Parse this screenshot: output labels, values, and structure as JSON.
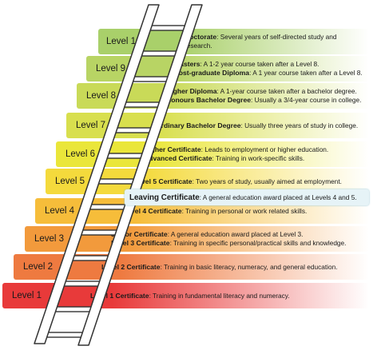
{
  "colors": {
    "ladder_stroke": "#333333",
    "ladder_fill": "#ffffff",
    "leaving_bg": "#e6f3f7"
  },
  "levels": [
    {
      "level": "Level 10",
      "color": "#a9d06a",
      "lines": [
        {
          "term": "Doctorate",
          "text": ": Several years of self-directed study and"
        },
        {
          "term": "",
          "text": "research."
        }
      ]
    },
    {
      "level": "Level 9",
      "color": "#b8d464",
      "lines": [
        {
          "term": "Masters",
          "text": ": A 1-2 year course taken after a Level 8."
        },
        {
          "term": "Post-graduate Diploma",
          "text": ": A 1 year course taken after a Level 8."
        }
      ]
    },
    {
      "level": "Level 8",
      "color": "#c9da58",
      "lines": [
        {
          "term": "Higher Diploma",
          "text": ": A 1-year course taken after a bachelor degree."
        },
        {
          "term": "Honours Bachelor Degree",
          "text": ": Usually a 3/4-year course in college."
        }
      ]
    },
    {
      "level": "Level 7",
      "color": "#d8df4e",
      "lines": [
        {
          "term": "Ordinary Bachelor Degree",
          "text": ": Usually three years of study in college."
        }
      ]
    },
    {
      "level": "Level 6",
      "color": "#eae63a",
      "lines": [
        {
          "term": "Higher Certificate",
          "text": ": Leads to employment or higher education."
        },
        {
          "term": "Advanced Certificate",
          "text": ": Training in work-specific skills."
        }
      ]
    },
    {
      "level": "Level 5",
      "color": "#f4da3c",
      "lines": [
        {
          "term": "Level 5 Certificate",
          "text": ": Two years of study, usually aimed at employment."
        }
      ]
    },
    {
      "level": "Level 4",
      "color": "#f6bd3a",
      "lines": [
        {
          "term": "Level 4 Certificate",
          "text": ": Training in personal or work related skills."
        }
      ]
    },
    {
      "level": "Level 3",
      "color": "#f29a3c",
      "lines": [
        {
          "term": "Junior Certificate",
          "text": ": A general education award placed at Level 3."
        },
        {
          "term": "Level 3 Certificate",
          "text": ": Training in specific personal/practical skills and knowledge."
        }
      ]
    },
    {
      "level": "Level 2",
      "color": "#ee7a40",
      "lines": [
        {
          "term": "Level 2 Certificate",
          "text": ": Training in basic literacy, numeracy, and general education."
        }
      ]
    },
    {
      "level": "Level 1",
      "color": "#e83a3a",
      "lines": [
        {
          "term": "Level 1 Certificate",
          "text": ": Training in fundamental literacy and numeracy."
        }
      ]
    }
  ],
  "leaving": {
    "term": "Leaving Certificate",
    "text": ": A general education award placed at Levels 4 and 5."
  }
}
